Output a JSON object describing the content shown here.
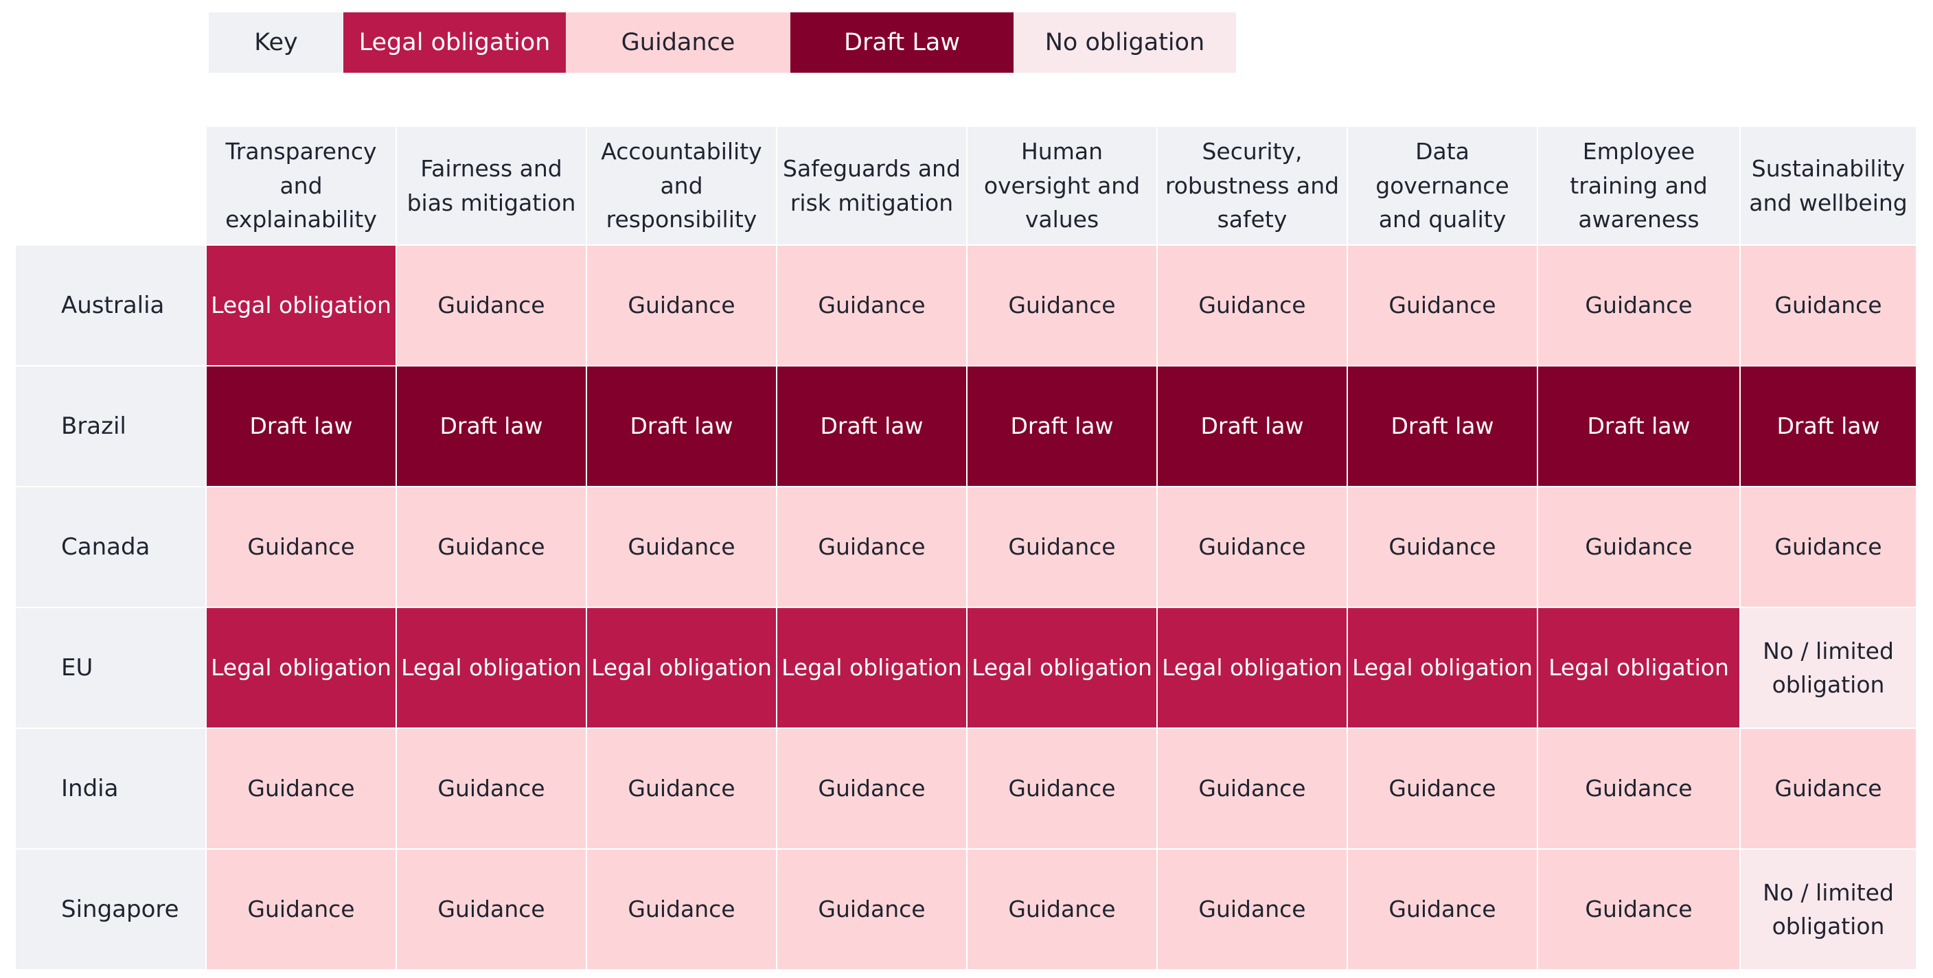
{
  "chart_data": {
    "type": "table",
    "key": {
      "label": "Key",
      "items": [
        {
          "status": "legal",
          "label": "Legal obligation",
          "color": "#b91a4b"
        },
        {
          "status": "guidance",
          "label": "Guidance",
          "color": "#fdd5d8"
        },
        {
          "status": "draft",
          "label": "Draft Law",
          "color": "#82002c"
        },
        {
          "status": "none",
          "label": "No obligation",
          "color": "#f9e8ec"
        }
      ]
    },
    "columns": [
      "Transparency and explainability",
      "Fairness and bias mitigation",
      "Accountability and responsibility",
      "Safeguards  and risk mitigation",
      "Human oversight  and values",
      "Security, robustness and safety",
      "Data governance and quality",
      "Employee training and awareness",
      "Sustainability and wellbeing"
    ],
    "rows": [
      {
        "name": "Australia",
        "cells": [
          {
            "status": "legal",
            "text": "Legal obligation"
          },
          {
            "status": "guidance",
            "text": "Guidance"
          },
          {
            "status": "guidance",
            "text": "Guidance"
          },
          {
            "status": "guidance",
            "text": "Guidance"
          },
          {
            "status": "guidance",
            "text": "Guidance"
          },
          {
            "status": "guidance",
            "text": "Guidance"
          },
          {
            "status": "guidance",
            "text": "Guidance"
          },
          {
            "status": "guidance",
            "text": "Guidance"
          },
          {
            "status": "guidance",
            "text": "Guidance"
          }
        ]
      },
      {
        "name": "Brazil",
        "cells": [
          {
            "status": "draft",
            "text": "Draft law"
          },
          {
            "status": "draft",
            "text": "Draft law"
          },
          {
            "status": "draft",
            "text": "Draft law"
          },
          {
            "status": "draft",
            "text": "Draft law"
          },
          {
            "status": "draft",
            "text": "Draft law"
          },
          {
            "status": "draft",
            "text": "Draft law"
          },
          {
            "status": "draft",
            "text": "Draft law"
          },
          {
            "status": "draft",
            "text": "Draft law"
          },
          {
            "status": "draft",
            "text": "Draft law"
          }
        ]
      },
      {
        "name": "Canada",
        "cells": [
          {
            "status": "guidance",
            "text": "Guidance"
          },
          {
            "status": "guidance",
            "text": "Guidance"
          },
          {
            "status": "guidance",
            "text": "Guidance"
          },
          {
            "status": "guidance",
            "text": "Guidance"
          },
          {
            "status": "guidance",
            "text": "Guidance"
          },
          {
            "status": "guidance",
            "text": "Guidance"
          },
          {
            "status": "guidance",
            "text": "Guidance"
          },
          {
            "status": "guidance",
            "text": "Guidance"
          },
          {
            "status": "guidance",
            "text": "Guidance"
          }
        ]
      },
      {
        "name": "EU",
        "cells": [
          {
            "status": "legal",
            "text": "Legal obligation"
          },
          {
            "status": "legal",
            "text": "Legal obligation"
          },
          {
            "status": "legal",
            "text": "Legal obligation"
          },
          {
            "status": "legal",
            "text": "Legal obligation"
          },
          {
            "status": "legal",
            "text": "Legal obligation"
          },
          {
            "status": "legal",
            "text": "Legal obligation"
          },
          {
            "status": "legal",
            "text": "Legal obligation"
          },
          {
            "status": "legal",
            "text": "Legal obligation"
          },
          {
            "status": "none",
            "text": "No / limited obligation"
          }
        ]
      },
      {
        "name": "India",
        "cells": [
          {
            "status": "guidance",
            "text": "Guidance"
          },
          {
            "status": "guidance",
            "text": "Guidance"
          },
          {
            "status": "guidance",
            "text": "Guidance"
          },
          {
            "status": "guidance",
            "text": "Guidance"
          },
          {
            "status": "guidance",
            "text": "Guidance"
          },
          {
            "status": "guidance",
            "text": "Guidance"
          },
          {
            "status": "guidance",
            "text": "Guidance"
          },
          {
            "status": "guidance",
            "text": "Guidance"
          },
          {
            "status": "guidance",
            "text": "Guidance"
          }
        ]
      },
      {
        "name": "Singapore",
        "cells": [
          {
            "status": "guidance",
            "text": "Guidance"
          },
          {
            "status": "guidance",
            "text": "Guidance"
          },
          {
            "status": "guidance",
            "text": "Guidance"
          },
          {
            "status": "guidance",
            "text": "Guidance"
          },
          {
            "status": "guidance",
            "text": "Guidance"
          },
          {
            "status": "guidance",
            "text": "Guidance"
          },
          {
            "status": "guidance",
            "text": "Guidance"
          },
          {
            "status": "guidance",
            "text": "Guidance"
          },
          {
            "status": "none",
            "text": "No / limited obligation"
          }
        ]
      }
    ]
  }
}
